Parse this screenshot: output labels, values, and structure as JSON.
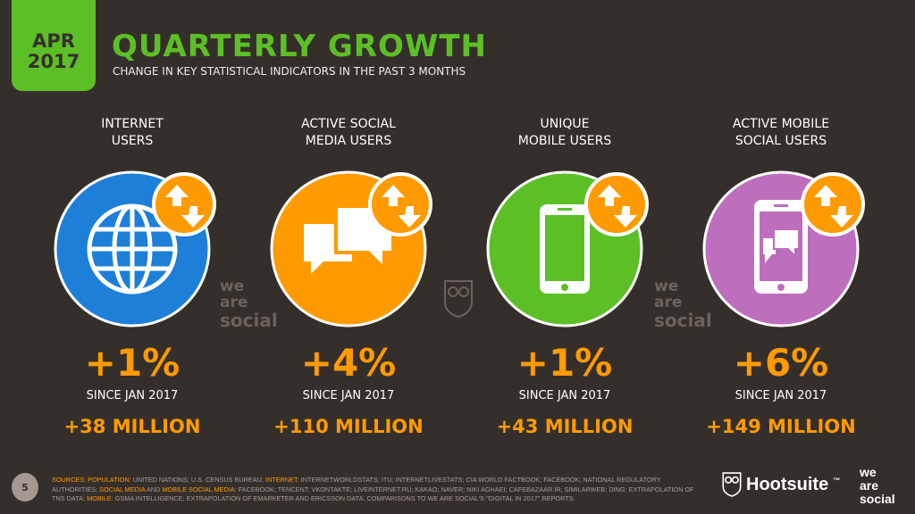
{
  "header": {
    "date_month": "APR",
    "date_year": "2017",
    "title": "QUARTERLY GROWTH",
    "subtitle": "CHANGE IN KEY STATISTICAL INDICATORS IN THE PAST 3 MONTHS"
  },
  "colors": {
    "background": "#352f2b",
    "accent_green": "#5cbf26",
    "accent_orange": "#ff9b00"
  },
  "stats": [
    {
      "label1": "INTERNET",
      "label2": "USERS",
      "icon": "globe-icon",
      "color": "#1e7fd9",
      "percent": "+1%",
      "since": "SINCE JAN 2017",
      "absolute": "+38 MILLION"
    },
    {
      "label1": "ACTIVE SOCIAL",
      "label2": "MEDIA USERS",
      "icon": "chat-bubbles-icon",
      "color": "#ff9b00",
      "percent": "+4%",
      "since": "SINCE JAN 2017",
      "absolute": "+110 MILLION"
    },
    {
      "label1": "UNIQUE",
      "label2": "MOBILE USERS",
      "icon": "mobile-phone-icon",
      "color": "#5cbf26",
      "percent": "+1%",
      "since": "SINCE JAN 2017",
      "absolute": "+43 MILLION"
    },
    {
      "label1": "ACTIVE MOBILE",
      "label2": "SOCIAL USERS",
      "icon": "mobile-chat-icon",
      "color": "#bd6ebd",
      "percent": "+6%",
      "since": "SINCE JAN 2017",
      "absolute": "+149 MILLION"
    }
  ],
  "watermark": {
    "line1": "we",
    "line2": "are",
    "line3": "social"
  },
  "footer": {
    "page_number": "5",
    "s0": "SOURCES:",
    "s1": "POPULATION:",
    "s2": " UNITED NATIONS; U.S. CENSUS BUREAU; ",
    "s3": "INTERNET:",
    "s4": " INTERNETWORLDSTATS; ITU; INTERNETLIVESTATS; CIA WORLD FACTBOOK; FACEBOOK; NATIONAL REGULATORY AUTHORITIES; ",
    "s5": "SOCIAL MEDIA",
    "s6": " AND ",
    "s7": "MOBILE SOCIAL MEDIA:",
    "s8": " FACEBOOK; TENCENT; VKONTAKTE; LIVEINTERNET.RU; KAKAO; NAVER; NIKI AGHAEI; CAFEBAZAAR.IR; SIMILARWEB; DING; EXTRAPOLATION OF TNS DATA; ",
    "s9": "MOBILE:",
    "s10": " GSMA INTELLIGENCE; EXTRAPOLATION OF EMARKETER AND ERICSSON DATA. COMPARISONS TO WE ARE SOCIAL'S \"DIGITAL IN 2017\" REPORTS.",
    "hootsuite": "Hootsuite",
    "tm": "™"
  }
}
